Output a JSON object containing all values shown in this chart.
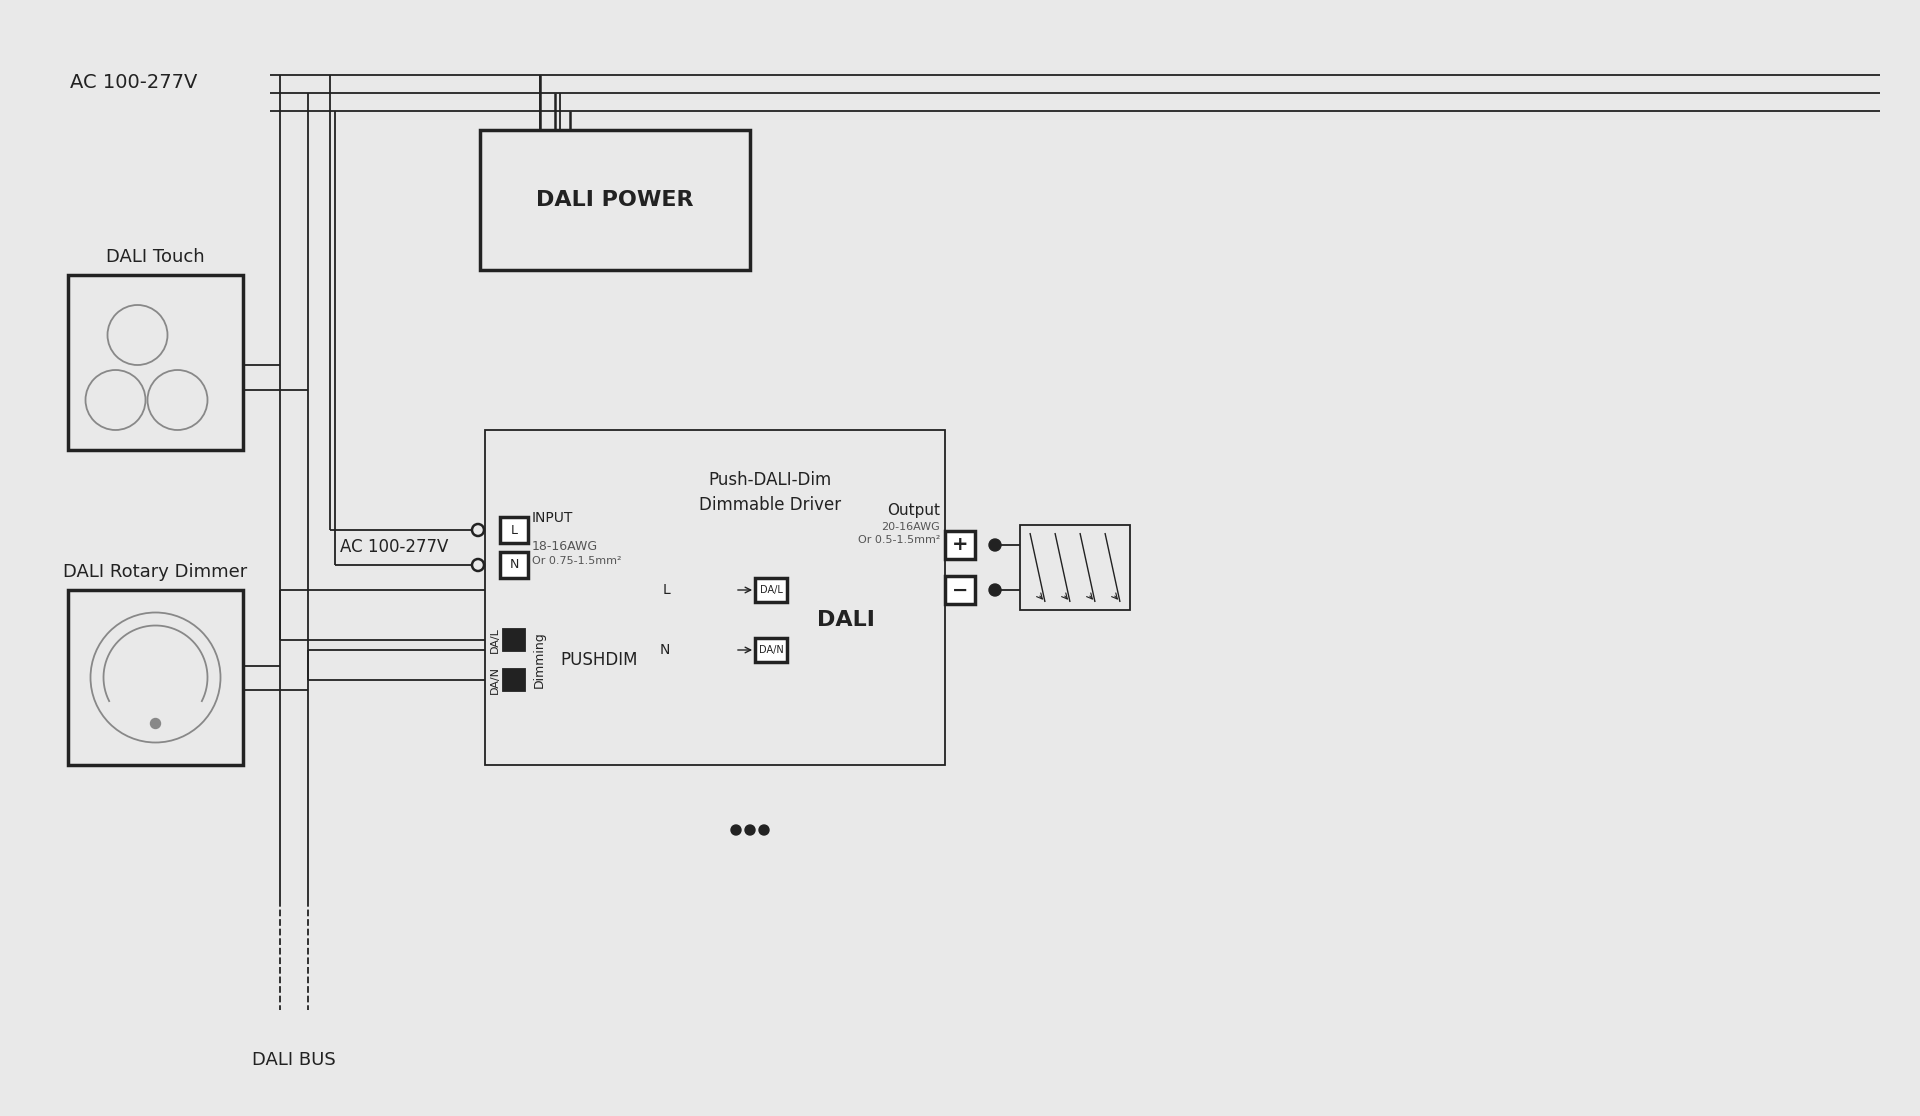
{
  "bg_color": "#e9e9e9",
  "line_color": "#222222",
  "ac_label_top": "AC 100-277V",
  "ac_label_mid": "AC 100-277V",
  "dali_touch_label": "DALI Touch",
  "dali_rotary_label": "DALI Rotary Dimmer",
  "dali_bus_label": "DALI BUS",
  "dali_power_label": "DALI POWER",
  "input_label": "INPUT",
  "input_wire1": "18-16AWG",
  "input_wire2": "Or 0.75-1.5mm²",
  "dimming_label": "Dimming",
  "pushdim_label": "PUSHDIM",
  "dali_label": "DALI",
  "dal_l": "DA/L",
  "dal_n": "DA/N",
  "output_label": "Output",
  "output_wire1": "20-16AWG",
  "output_wire2": "Or 0.5-1.5mm²",
  "plus_label": "+",
  "minus_label": "−",
  "driver_line1": "Push-DALI-Dim",
  "driver_line2": "Dimmable Driver",
  "L_label": "L",
  "N_label": "N",
  "L_dali_label": "L",
  "N_dali_label": "N"
}
